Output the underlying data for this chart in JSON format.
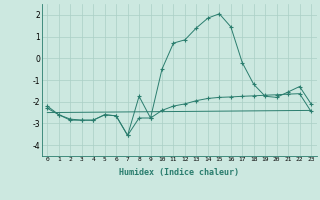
{
  "line1_x": [
    0,
    1,
    2,
    3,
    4,
    5,
    6,
    7,
    8,
    9,
    10,
    11,
    12,
    13,
    14,
    15,
    16,
    17,
    18,
    19,
    20,
    21,
    22,
    23
  ],
  "line1_y": [
    -2.2,
    -2.6,
    -2.8,
    -2.85,
    -2.85,
    -2.6,
    -2.65,
    -3.55,
    -1.75,
    -2.75,
    -0.5,
    0.7,
    0.85,
    1.4,
    1.85,
    2.05,
    1.45,
    -0.2,
    -1.2,
    -1.75,
    -1.8,
    -1.55,
    -1.3,
    -2.1
  ],
  "line2_x": [
    0,
    1,
    2,
    3,
    4,
    5,
    6,
    7,
    8,
    9,
    10,
    11,
    12,
    13,
    14,
    15,
    16,
    17,
    18,
    19,
    20,
    21,
    22,
    23
  ],
  "line2_y": [
    -2.3,
    -2.6,
    -2.85,
    -2.85,
    -2.85,
    -2.6,
    -2.65,
    -3.55,
    -2.75,
    -2.75,
    -2.4,
    -2.2,
    -2.1,
    -1.95,
    -1.85,
    -1.8,
    -1.78,
    -1.75,
    -1.73,
    -1.7,
    -1.68,
    -1.65,
    -1.63,
    -2.45
  ],
  "line3_x": [
    0,
    23
  ],
  "line3_y": [
    -2.5,
    -2.4
  ],
  "line_color": "#2a7d6e",
  "bg_color": "#cce8e0",
  "grid_color": "#aacfc6",
  "xlabel": "Humidex (Indice chaleur)",
  "ylim": [
    -4.5,
    2.5
  ],
  "xlim": [
    -0.5,
    23.5
  ],
  "yticks": [
    -4,
    -3,
    -2,
    -1,
    0,
    1,
    2
  ],
  "xticks": [
    0,
    1,
    2,
    3,
    4,
    5,
    6,
    7,
    8,
    9,
    10,
    11,
    12,
    13,
    14,
    15,
    16,
    17,
    18,
    19,
    20,
    21,
    22,
    23
  ]
}
